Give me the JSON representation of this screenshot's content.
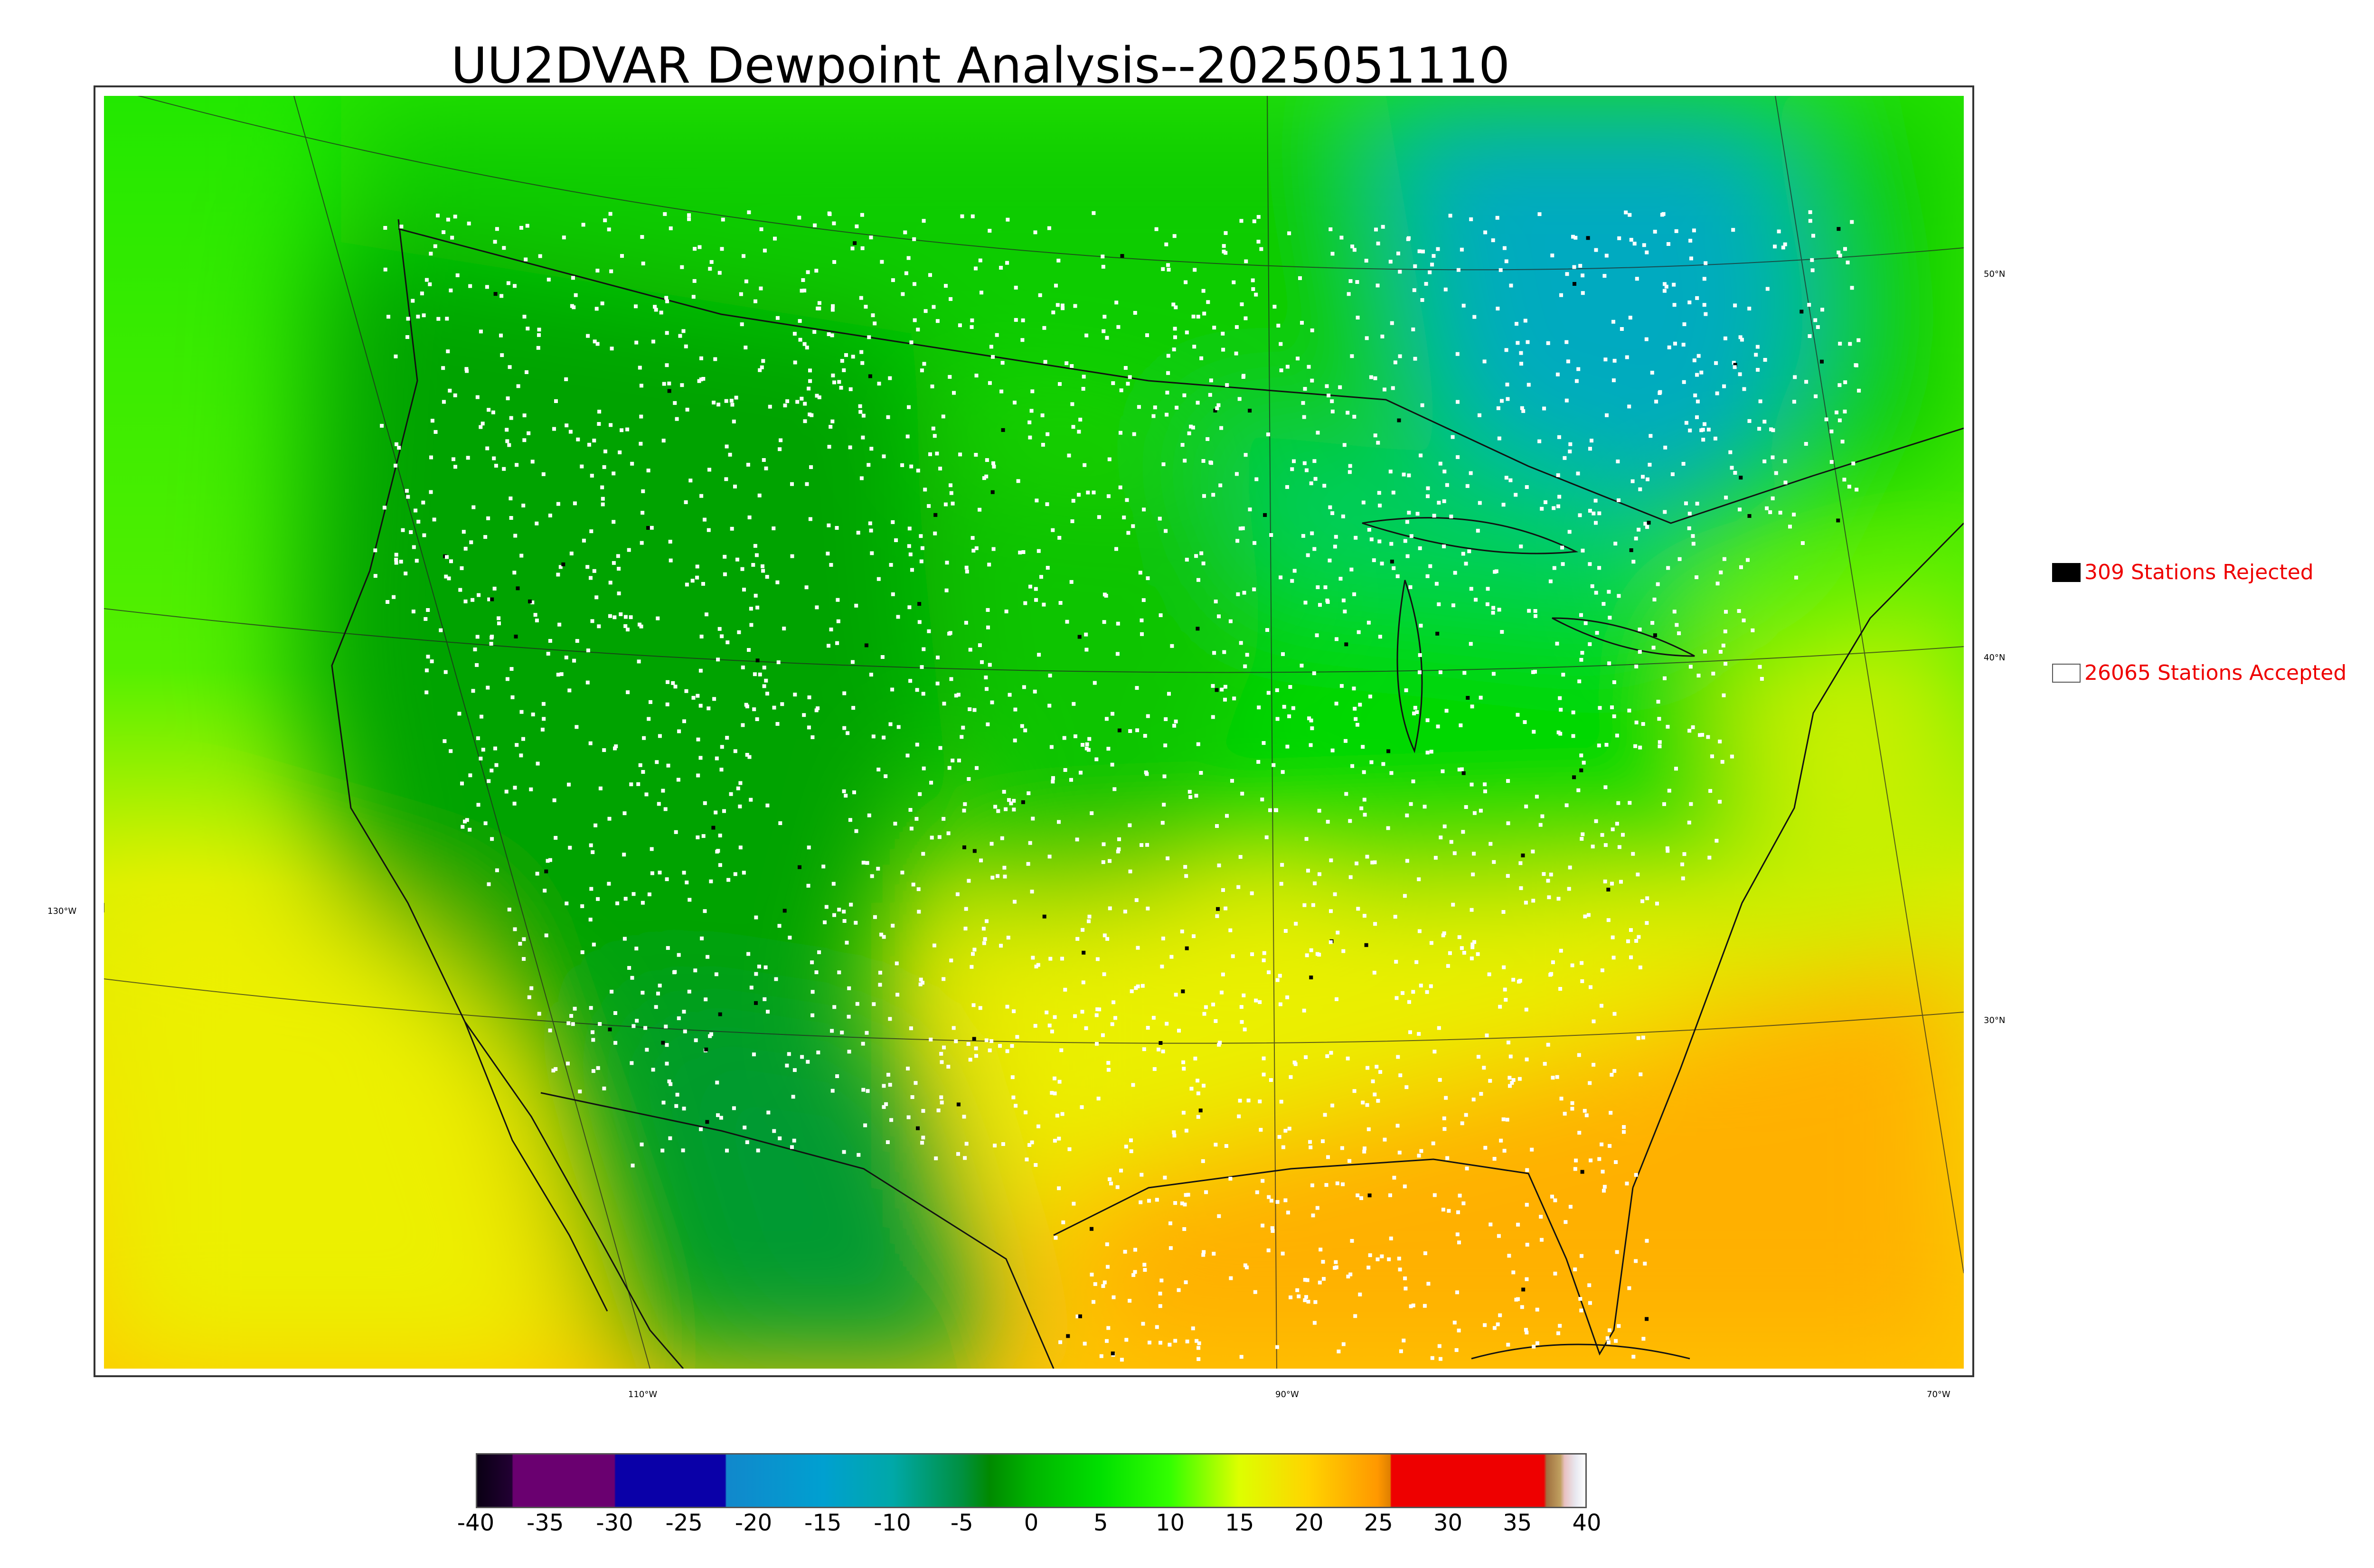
{
  "title": "UU2DVAR Dewpoint Analysis--2025051110",
  "legend": {
    "rejected": {
      "label": "309 Stations Rejected",
      "swatch_color": "#000000"
    },
    "accepted": {
      "label": "26065 Stations Accepted",
      "swatch_color": "#ffffff"
    }
  },
  "graticule": {
    "lat_labels": [
      "50°N",
      "40°N",
      "30°N"
    ],
    "lon_labels_left": [
      "130°W"
    ],
    "lon_labels_bottom": [
      "110°W",
      "90°W",
      "70°W"
    ]
  },
  "colorbar": {
    "ticks": [
      "-40",
      "-35",
      "-30",
      "-25",
      "-20",
      "-15",
      "-10",
      "-5",
      "0",
      "5",
      "10",
      "15",
      "20",
      "25",
      "30",
      "35",
      "40"
    ],
    "range": [
      -40,
      40
    ],
    "stops": [
      {
        "value": -40,
        "color": "#0a0014"
      },
      {
        "value": -37.5,
        "color": "#220033"
      },
      {
        "value": -37.4,
        "color": "#6a0070"
      },
      {
        "value": -30.1,
        "color": "#6a0070"
      },
      {
        "value": -30,
        "color": "#0a00a8"
      },
      {
        "value": -22.1,
        "color": "#0a00a8"
      },
      {
        "value": -22,
        "color": "#1188cc"
      },
      {
        "value": -15,
        "color": "#00a0d0"
      },
      {
        "value": -10,
        "color": "#00a8a8"
      },
      {
        "value": -5,
        "color": "#009040"
      },
      {
        "value": -3,
        "color": "#008a00"
      },
      {
        "value": 0,
        "color": "#00b400"
      },
      {
        "value": 5,
        "color": "#00e000"
      },
      {
        "value": 10,
        "color": "#33ff00"
      },
      {
        "value": 15,
        "color": "#ddff00"
      },
      {
        "value": 20,
        "color": "#ffd400"
      },
      {
        "value": 25,
        "color": "#ff9800"
      },
      {
        "value": 25.9,
        "color": "#e08000"
      },
      {
        "value": 26,
        "color": "#ee0000"
      },
      {
        "value": 37,
        "color": "#ee0000"
      },
      {
        "value": 37.2,
        "color": "#a07040"
      },
      {
        "value": 38.2,
        "color": "#c0a060"
      },
      {
        "value": 38.5,
        "color": "#e8c0c0"
      },
      {
        "value": 39.3,
        "color": "#e8e8f0"
      },
      {
        "value": 40,
        "color": "#ffffff"
      }
    ]
  },
  "map_colors": {
    "northwest_ocean": "#22e800",
    "canada": "#11cc00",
    "interior_west": "#00a300",
    "plains": "#10c400",
    "great_lakes": "#00cc60",
    "quebec_dry": "#00aac0",
    "east": "#00d800",
    "southeast": "#eaf000",
    "gulf_ocean": "#ffb000",
    "atlantic_south": "#f8c000",
    "atlantic_north": "#c8f000",
    "pacific_south": "#ecf000",
    "mexico_dry": "#009a30",
    "station_accepted": "#ffffff",
    "station_rejected": "#000000",
    "boundary": "#111111"
  }
}
